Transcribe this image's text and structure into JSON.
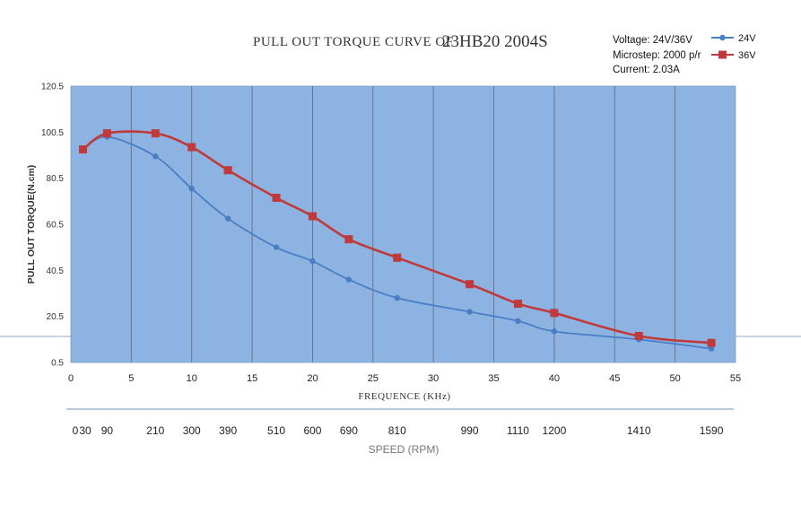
{
  "chart_data": {
    "type": "line",
    "title": "PULL OUT TORQUE CURVE OF",
    "model": "23HB20 2004S",
    "info": [
      "Voltage: 24V/36V",
      "Microstep: 2000 p/r",
      "Current: 2.03A"
    ],
    "xlabel": "FREQUENCE (KHz)",
    "ylabel": "PULL OUT TORQUE(N.cm)",
    "xlim": [
      0,
      55
    ],
    "ylim": [
      0.5,
      120.5
    ],
    "x_ticks": [
      "0",
      "5",
      "10",
      "15",
      "20",
      "25",
      "30",
      "35",
      "40",
      "45",
      "50",
      "55"
    ],
    "y_ticks": [
      "0.5",
      "20.5",
      "40.5",
      "60.5",
      "80.5",
      "100.5",
      "120.5"
    ],
    "grid": "vertical",
    "legend": "top-right",
    "series": [
      {
        "name": "24V",
        "color": "#4a7ec4",
        "marker": "circle",
        "x": [
          1,
          3,
          7,
          10,
          13,
          17,
          20,
          23,
          27,
          33,
          37,
          40,
          47,
          53
        ],
        "y": [
          93,
          98.5,
          90,
          76,
          63,
          50.5,
          44.5,
          36.5,
          28.5,
          22.5,
          18.5,
          14,
          10.5,
          6.5
        ]
      },
      {
        "name": "36V",
        "color": "#c0393b",
        "marker": "square",
        "x": [
          1,
          3,
          7,
          10,
          13,
          17,
          20,
          23,
          27,
          33,
          37,
          40,
          47,
          53
        ],
        "y": [
          93,
          100,
          100,
          94,
          84,
          72,
          64,
          54,
          46,
          34.5,
          26,
          22,
          12,
          9
        ]
      }
    ],
    "speed_axis": {
      "label": "SPEED (RPM)",
      "ticks": [
        {
          "x": 0,
          "label": "0"
        },
        {
          "x": 1,
          "label": "30"
        },
        {
          "x": 3,
          "label": "90"
        },
        {
          "x": 7,
          "label": "210"
        },
        {
          "x": 10,
          "label": "300"
        },
        {
          "x": 13,
          "label": "390"
        },
        {
          "x": 17,
          "label": "510"
        },
        {
          "x": 20,
          "label": "600"
        },
        {
          "x": 23,
          "label": "690"
        },
        {
          "x": 27,
          "label": "810"
        },
        {
          "x": 33,
          "label": "990"
        },
        {
          "x": 37,
          "label": "1110"
        },
        {
          "x": 40,
          "label": "1200"
        },
        {
          "x": 47,
          "label": "1410"
        },
        {
          "x": 53,
          "label": "1590"
        }
      ]
    }
  }
}
